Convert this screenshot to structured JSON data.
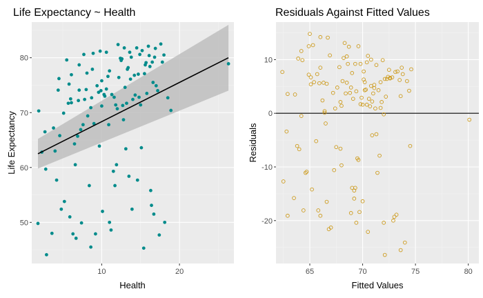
{
  "colors": {
    "panel_bg": "#ebebeb",
    "grid_major": "#ffffff",
    "grid_minor": "#f3f3f3",
    "scatter_point": "#008b8b",
    "residual_point": "#cd9b1d",
    "fit_line": "#000000",
    "ci_band": "#bebebe",
    "zero_line": "#000000"
  },
  "chart_data": [
    {
      "type": "scatter",
      "title": "Life Expectancy ~ Health",
      "xlabel": "Health",
      "ylabel": "Life Expectancy",
      "xlim": [
        1.0,
        27.0
      ],
      "ylim": [
        42.5,
        86.5
      ],
      "xticks": [
        10,
        20
      ],
      "yticks": [
        50,
        60,
        70,
        80
      ],
      "xtick_labels": [
        "10",
        "20"
      ],
      "ytick_labels": [
        "50",
        "60",
        "70",
        "80"
      ],
      "grid": true,
      "fit": {
        "method": "linear",
        "x": [
          1.8,
          26.3
        ],
        "y": [
          62.5,
          80.0
        ],
        "ci_lower": [
          59.8,
          74.0
        ],
        "ci_upper": [
          65.2,
          86.0
        ]
      },
      "points": [
        [
          1.8,
          49.8
        ],
        [
          1.9,
          70.3
        ],
        [
          2.3,
          62.8
        ],
        [
          2.7,
          66.5
        ],
        [
          2.8,
          59.7
        ],
        [
          2.9,
          44.1
        ],
        [
          3.6,
          48.0
        ],
        [
          3.8,
          67.2
        ],
        [
          4.0,
          63.0
        ],
        [
          4.2,
          57.7
        ],
        [
          4.4,
          74.1
        ],
        [
          4.5,
          76.2
        ],
        [
          4.6,
          65.8
        ],
        [
          4.8,
          52.4
        ],
        [
          5.1,
          69.9
        ],
        [
          5.2,
          53.8
        ],
        [
          5.5,
          79.6
        ],
        [
          5.7,
          71.7
        ],
        [
          5.8,
          75.2
        ],
        [
          5.9,
          51.0
        ],
        [
          6.0,
          72.5
        ],
        [
          6.1,
          76.9
        ],
        [
          6.1,
          71.8
        ],
        [
          6.3,
          47.9
        ],
        [
          6.5,
          64.3
        ],
        [
          6.6,
          60.5
        ],
        [
          6.7,
          47.1
        ],
        [
          6.9,
          65.7
        ],
        [
          7.0,
          72.2
        ],
        [
          7.1,
          74.1
        ],
        [
          7.1,
          78.7
        ],
        [
          7.3,
          66.9
        ],
        [
          7.4,
          49.9
        ],
        [
          7.6,
          67.8
        ],
        [
          7.7,
          80.6
        ],
        [
          7.8,
          72.4
        ],
        [
          8.0,
          74.2
        ],
        [
          8.1,
          77.2
        ],
        [
          8.2,
          69.4
        ],
        [
          8.4,
          56.7
        ],
        [
          8.6,
          45.5
        ],
        [
          8.6,
          70.9
        ],
        [
          8.7,
          72.7
        ],
        [
          8.8,
          77.9
        ],
        [
          8.9,
          80.8
        ],
        [
          9.0,
          68.0
        ],
        [
          9.2,
          47.9
        ],
        [
          9.4,
          74.9
        ],
        [
          9.6,
          73.7
        ],
        [
          9.7,
          63.9
        ],
        [
          9.8,
          81.2
        ],
        [
          9.9,
          74.0
        ],
        [
          10.0,
          75.8
        ],
        [
          10.0,
          71.2
        ],
        [
          10.1,
          52.0
        ],
        [
          10.3,
          73.3
        ],
        [
          10.4,
          73.0
        ],
        [
          10.6,
          81.0
        ],
        [
          10.6,
          74.3
        ],
        [
          10.8,
          76.6
        ],
        [
          10.9,
          67.8
        ],
        [
          11.0,
          77.6
        ],
        [
          11.0,
          50.0
        ],
        [
          11.2,
          48.6
        ],
        [
          11.3,
          73.3
        ],
        [
          11.5,
          59.3
        ],
        [
          11.6,
          72.8
        ],
        [
          11.7,
          56.7
        ],
        [
          11.8,
          71.4
        ],
        [
          11.9,
          60.5
        ],
        [
          12.0,
          70.7
        ],
        [
          12.1,
          82.4
        ],
        [
          12.2,
          76.4
        ],
        [
          12.4,
          79.9
        ],
        [
          12.5,
          79.5
        ],
        [
          12.6,
          79.8
        ],
        [
          12.7,
          71.3
        ],
        [
          12.8,
          68.7
        ],
        [
          12.9,
          81.8
        ],
        [
          13.0,
          74.6
        ],
        [
          13.1,
          63.4
        ],
        [
          13.2,
          71.7
        ],
        [
          13.3,
          77.9
        ],
        [
          13.4,
          78.2
        ],
        [
          13.5,
          58.4
        ],
        [
          13.6,
          81.0
        ],
        [
          13.7,
          76.1
        ],
        [
          13.8,
          80.1
        ],
        [
          13.9,
          52.4
        ],
        [
          14.0,
          72.4
        ],
        [
          14.2,
          76.8
        ],
        [
          14.3,
          73.2
        ],
        [
          14.5,
          81.8
        ],
        [
          14.6,
          57.7
        ],
        [
          14.7,
          77.0
        ],
        [
          14.8,
          72.8
        ],
        [
          14.9,
          80.6
        ],
        [
          15.0,
          71.4
        ],
        [
          15.1,
          63.6
        ],
        [
          15.2,
          81.3
        ],
        [
          15.4,
          45.3
        ],
        [
          15.5,
          77.1
        ],
        [
          15.6,
          78.7
        ],
        [
          15.7,
          79.1
        ],
        [
          15.8,
          73.5
        ],
        [
          16.0,
          82.1
        ],
        [
          16.1,
          80.4
        ],
        [
          16.2,
          78.4
        ],
        [
          16.3,
          55.8
        ],
        [
          16.4,
          53.1
        ],
        [
          16.5,
          79.2
        ],
        [
          16.6,
          75.5
        ],
        [
          16.7,
          51.5
        ],
        [
          16.8,
          80.1
        ],
        [
          16.9,
          81.7
        ],
        [
          17.0,
          74.9
        ],
        [
          17.2,
          74.0
        ],
        [
          17.4,
          47.7
        ],
        [
          17.6,
          82.5
        ],
        [
          17.8,
          79.2
        ],
        [
          18.0,
          80.5
        ],
        [
          18.1,
          50.0
        ],
        [
          18.5,
          72.7
        ],
        [
          18.9,
          70.4
        ],
        [
          26.3,
          78.9
        ]
      ]
    },
    {
      "type": "scatter",
      "title": "Residuals Against Fitted Values",
      "xlabel": "Fitted Values",
      "ylabel": "Residuals",
      "xlim": [
        61.8,
        81.0
      ],
      "ylim": [
        -28.0,
        17.0
      ],
      "xticks": [
        65,
        70,
        75,
        80
      ],
      "yticks": [
        -20,
        -10,
        0,
        10
      ],
      "xtick_labels": [
        "65",
        "70",
        "75",
        "80"
      ],
      "ytick_labels": [
        "-20",
        "-10",
        "0",
        "10"
      ],
      "grid": true,
      "reference_line_y": 0,
      "points": [
        [
          62.4,
          7.7
        ],
        [
          62.5,
          -12.7
        ],
        [
          62.8,
          -3.4
        ],
        [
          62.9,
          -19.1
        ],
        [
          62.9,
          3.6
        ],
        [
          63.5,
          -15.8
        ],
        [
          63.6,
          3.5
        ],
        [
          63.8,
          -6.1
        ],
        [
          63.9,
          10.2
        ],
        [
          64.0,
          -6.7
        ],
        [
          64.2,
          11.6
        ],
        [
          64.2,
          -0.5
        ],
        [
          64.3,
          9.9
        ],
        [
          64.4,
          -18.1
        ],
        [
          64.6,
          -11.1
        ],
        [
          64.7,
          -10.9
        ],
        [
          64.9,
          12.5
        ],
        [
          64.9,
          7.2
        ],
        [
          65.0,
          14.8
        ],
        [
          65.1,
          5.4
        ],
        [
          65.1,
          6.7
        ],
        [
          65.2,
          -14.2
        ],
        [
          65.3,
          12.7
        ],
        [
          65.4,
          5.8
        ],
        [
          65.6,
          -5.2
        ],
        [
          65.7,
          7.3
        ],
        [
          65.8,
          -18.1
        ],
        [
          65.9,
          5.6
        ],
        [
          66.0,
          8.5
        ],
        [
          66.0,
          -19.1
        ],
        [
          66.0,
          14.2
        ],
        [
          66.2,
          2.4
        ],
        [
          66.3,
          5.7
        ],
        [
          66.4,
          0.1
        ],
        [
          66.4,
          0.4
        ],
        [
          66.5,
          -1.9
        ],
        [
          66.6,
          -16.5
        ],
        [
          66.6,
          5.5
        ],
        [
          66.7,
          14.1
        ],
        [
          66.8,
          -21.6
        ],
        [
          66.9,
          10.8
        ],
        [
          67.0,
          -21.3
        ],
        [
          67.2,
          3.8
        ],
        [
          67.3,
          -10.6
        ],
        [
          67.4,
          0.9
        ],
        [
          67.5,
          -6.3
        ],
        [
          67.6,
          4.8
        ],
        [
          67.8,
          8.6
        ],
        [
          67.9,
          2.1
        ],
        [
          67.9,
          -6.6
        ],
        [
          68.0,
          1.4
        ],
        [
          68.0,
          -9.7
        ],
        [
          68.1,
          6.0
        ],
        [
          68.2,
          10.3
        ],
        [
          68.3,
          13.1
        ],
        [
          68.4,
          3.7
        ],
        [
          68.5,
          5.7
        ],
        [
          68.5,
          10.6
        ],
        [
          68.6,
          9.2
        ],
        [
          68.7,
          12.4
        ],
        [
          68.8,
          3.8
        ],
        [
          68.9,
          4.8
        ],
        [
          68.9,
          -18.6
        ],
        [
          69.0,
          -13.9
        ],
        [
          69.0,
          7.5
        ],
        [
          69.1,
          2.7
        ],
        [
          69.2,
          -15.9
        ],
        [
          69.2,
          -14.4
        ],
        [
          69.3,
          9.2
        ],
        [
          69.3,
          -13.9
        ],
        [
          69.4,
          -20.4
        ],
        [
          69.4,
          4.1
        ],
        [
          69.5,
          -8.4
        ],
        [
          69.6,
          12.5
        ],
        [
          69.6,
          -8.7
        ],
        [
          69.7,
          -18.4
        ],
        [
          69.8,
          1.7
        ],
        [
          69.8,
          9.2
        ],
        [
          69.9,
          2.9
        ],
        [
          70.0,
          -16.4
        ],
        [
          70.0,
          1.6
        ],
        [
          70.1,
          6.3
        ],
        [
          70.1,
          7.8
        ],
        [
          70.2,
          4.3
        ],
        [
          70.2,
          5.8
        ],
        [
          70.3,
          4.4
        ],
        [
          70.4,
          1.6
        ],
        [
          70.4,
          9.5
        ],
        [
          70.5,
          10.7
        ],
        [
          70.5,
          -22.1
        ],
        [
          70.6,
          2.7
        ],
        [
          70.7,
          1.3
        ],
        [
          70.8,
          10.0
        ],
        [
          70.8,
          5.1
        ],
        [
          70.9,
          -4.1
        ],
        [
          70.9,
          2.2
        ],
        [
          71.0,
          3.7
        ],
        [
          71.1,
          5.3
        ],
        [
          71.1,
          4.7
        ],
        [
          71.2,
          0.9
        ],
        [
          71.3,
          9.0
        ],
        [
          71.3,
          -3.9
        ],
        [
          71.4,
          -11.1
        ],
        [
          71.5,
          4.3
        ],
        [
          71.6,
          -7.9
        ],
        [
          71.7,
          5.8
        ],
        [
          71.7,
          1.0
        ],
        [
          71.8,
          2.1
        ],
        [
          71.9,
          9.9
        ],
        [
          72.0,
          -0.2
        ],
        [
          72.0,
          -20.4
        ],
        [
          72.1,
          -26.4
        ],
        [
          72.1,
          6.4
        ],
        [
          72.2,
          3.1
        ],
        [
          72.3,
          6.4
        ],
        [
          72.4,
          6.8
        ],
        [
          72.5,
          8.1
        ],
        [
          72.6,
          6.5
        ],
        [
          72.6,
          6.6
        ],
        [
          72.8,
          6.7
        ],
        [
          72.9,
          -20.0
        ],
        [
          73.0,
          -19.3
        ],
        [
          73.1,
          7.7
        ],
        [
          73.2,
          -18.9
        ],
        [
          73.3,
          7.8
        ],
        [
          73.5,
          6.2
        ],
        [
          73.6,
          -25.5
        ],
        [
          73.6,
          3.2
        ],
        [
          73.7,
          8.5
        ],
        [
          73.8,
          7.3
        ],
        [
          74.0,
          -24.1
        ],
        [
          74.2,
          6.0
        ],
        [
          74.4,
          4.2
        ],
        [
          74.5,
          -6.1
        ],
        [
          74.6,
          8.2
        ],
        [
          80.1,
          -1.2
        ]
      ]
    }
  ]
}
